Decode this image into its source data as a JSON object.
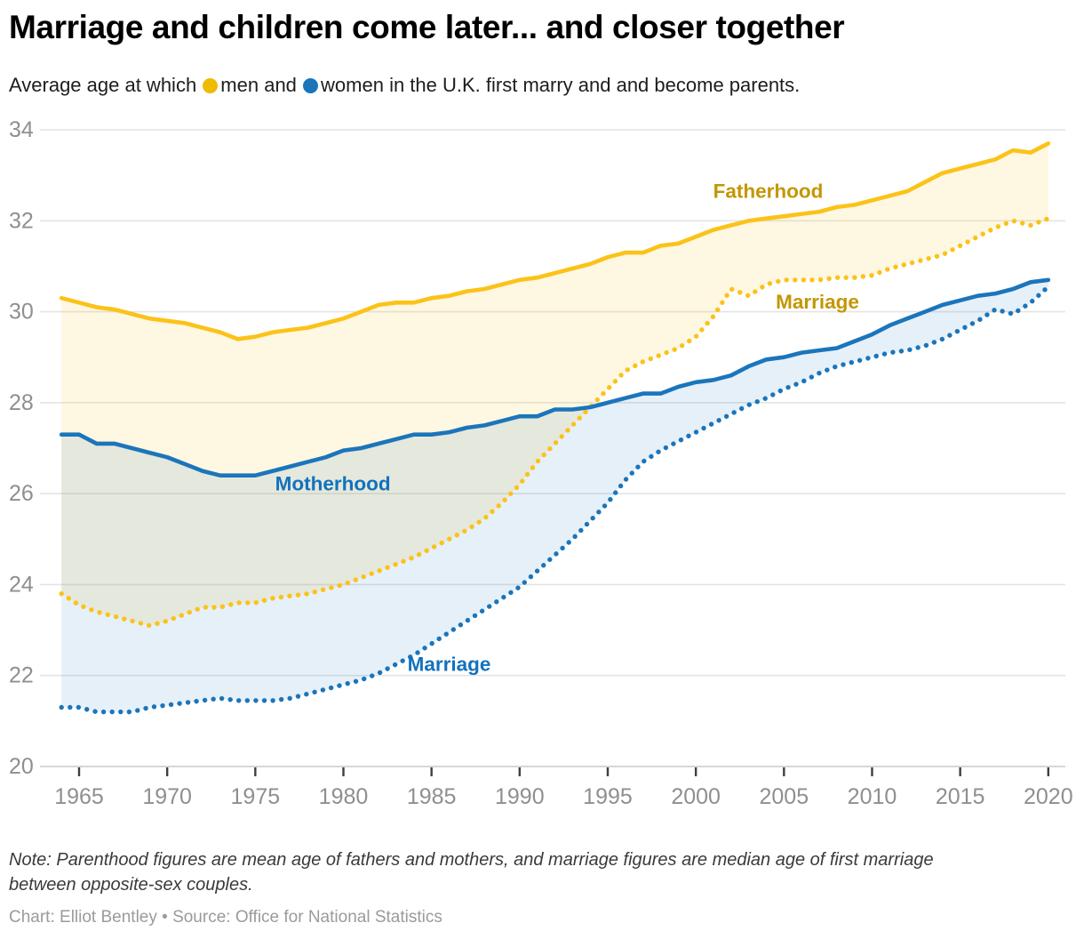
{
  "page": {
    "title": "Marriage and children come later... and closer together",
    "subtitle_segments": [
      {
        "type": "text",
        "text": "Average age at which "
      },
      {
        "type": "dot",
        "color": "#EFBB00",
        "name": "men-legend-dot"
      },
      {
        "type": "text",
        "text": "men and "
      },
      {
        "type": "dot",
        "color": "#1B75BB",
        "name": "women-legend-dot"
      },
      {
        "type": "text",
        "text": "women in the U.K. first marry and and become parents."
      }
    ],
    "note": "Note: Parenthood figures are mean age of fathers and mothers, and marriage figures are median age of first marriage between opposite-sex couples.",
    "credit": "Chart: Elliot Bentley • Source: Office for National Statistics"
  },
  "chart_data": {
    "type": "line",
    "title": "Marriage and children come later... and closer together",
    "xlabel": "",
    "ylabel": "Average age",
    "xlim": [
      1964,
      2020
    ],
    "ylim": [
      20,
      34
    ],
    "grid": "horizontal",
    "legend_position": "inline-in-subtitle",
    "xticks": [
      1965,
      1970,
      1975,
      1980,
      1985,
      1990,
      1995,
      2000,
      2005,
      2010,
      2015,
      2020
    ],
    "yticks": [
      20,
      22,
      24,
      26,
      28,
      30,
      32,
      34
    ],
    "x": [
      1964,
      1965,
      1966,
      1967,
      1968,
      1969,
      1970,
      1971,
      1972,
      1973,
      1974,
      1975,
      1976,
      1977,
      1978,
      1979,
      1980,
      1981,
      1982,
      1983,
      1984,
      1985,
      1986,
      1987,
      1988,
      1989,
      1990,
      1991,
      1992,
      1993,
      1994,
      1995,
      1996,
      1997,
      1998,
      1999,
      2000,
      2001,
      2002,
      2003,
      2004,
      2005,
      2006,
      2007,
      2008,
      2009,
      2010,
      2011,
      2012,
      2013,
      2014,
      2015,
      2016,
      2017,
      2018,
      2019,
      2020
    ],
    "series": [
      {
        "name": "Fatherhood",
        "group": "men",
        "line_style": "solid",
        "color": "#FBC219",
        "values": [
          30.3,
          30.2,
          30.1,
          30.05,
          29.95,
          29.85,
          29.8,
          29.75,
          29.65,
          29.55,
          29.4,
          29.45,
          29.55,
          29.6,
          29.65,
          29.75,
          29.85,
          30.0,
          30.15,
          30.2,
          30.2,
          30.3,
          30.35,
          30.45,
          30.5,
          30.6,
          30.7,
          30.75,
          30.85,
          30.95,
          31.05,
          31.2,
          31.3,
          31.3,
          31.45,
          31.5,
          31.65,
          31.8,
          31.9,
          32.0,
          32.05,
          32.1,
          32.15,
          32.2,
          32.3,
          32.35,
          32.45,
          32.55,
          32.65,
          32.85,
          33.05,
          33.15,
          33.25,
          33.35,
          33.55,
          33.5,
          33.7
        ]
      },
      {
        "name": "Marriage (men)",
        "group": "men",
        "line_style": "dotted",
        "color": "#FBC219",
        "values": [
          23.8,
          23.55,
          23.4,
          23.3,
          23.2,
          23.1,
          23.2,
          23.35,
          23.5,
          23.5,
          23.6,
          23.6,
          23.7,
          23.75,
          23.8,
          23.9,
          24.0,
          24.15,
          24.3,
          24.45,
          24.6,
          24.8,
          25.0,
          25.2,
          25.45,
          25.8,
          26.2,
          26.7,
          27.1,
          27.5,
          27.9,
          28.3,
          28.7,
          28.9,
          29.05,
          29.2,
          29.45,
          29.9,
          30.5,
          30.35,
          30.6,
          30.7,
          30.7,
          30.7,
          30.75,
          30.75,
          30.8,
          30.95,
          31.05,
          31.15,
          31.25,
          31.45,
          31.65,
          31.85,
          32.0,
          31.9,
          32.05
        ]
      },
      {
        "name": "Motherhood",
        "group": "women",
        "line_style": "solid",
        "color": "#1B75BB",
        "values": [
          27.3,
          27.3,
          27.1,
          27.1,
          27.0,
          26.9,
          26.8,
          26.65,
          26.5,
          26.4,
          26.4,
          26.4,
          26.5,
          26.6,
          26.7,
          26.8,
          26.95,
          27.0,
          27.1,
          27.2,
          27.3,
          27.3,
          27.35,
          27.45,
          27.5,
          27.6,
          27.7,
          27.7,
          27.85,
          27.85,
          27.9,
          28.0,
          28.1,
          28.2,
          28.2,
          28.35,
          28.45,
          28.5,
          28.6,
          28.8,
          28.95,
          29.0,
          29.1,
          29.15,
          29.2,
          29.35,
          29.5,
          29.7,
          29.85,
          30.0,
          30.15,
          30.25,
          30.35,
          30.4,
          30.5,
          30.65,
          30.7
        ]
      },
      {
        "name": "Marriage (women)",
        "group": "women",
        "line_style": "dotted",
        "color": "#1B75BB",
        "values": [
          21.3,
          21.3,
          21.2,
          21.2,
          21.2,
          21.3,
          21.35,
          21.4,
          21.45,
          21.5,
          21.45,
          21.45,
          21.45,
          21.5,
          21.6,
          21.7,
          21.8,
          21.9,
          22.05,
          22.25,
          22.45,
          22.7,
          22.95,
          23.2,
          23.45,
          23.7,
          23.95,
          24.3,
          24.65,
          25.0,
          25.4,
          25.8,
          26.3,
          26.7,
          26.95,
          27.15,
          27.35,
          27.55,
          27.75,
          27.95,
          28.1,
          28.3,
          28.45,
          28.65,
          28.8,
          28.9,
          29.0,
          29.1,
          29.15,
          29.25,
          29.4,
          29.6,
          29.8,
          30.05,
          29.95,
          30.2,
          30.55
        ]
      }
    ],
    "bands": [
      {
        "between": [
          "Fatherhood",
          "Marriage (men)"
        ],
        "color": "#FBC219",
        "opacity": 0.13
      },
      {
        "between": [
          "Motherhood",
          "Marriage (women)"
        ],
        "color": "#1B75BB",
        "opacity": 0.11
      }
    ],
    "annotations": [
      {
        "text": "Fatherhood",
        "year": 2004.1,
        "value": 32.65,
        "color": "#C39603"
      },
      {
        "text": "Marriage",
        "year": 2006.9,
        "value": 30.22,
        "color": "#C39603"
      },
      {
        "text": "Motherhood",
        "year": 1979.4,
        "value": 26.22,
        "color": "#1272BE"
      },
      {
        "text": "Marriage",
        "year": 1986.0,
        "value": 22.25,
        "color": "#1272BE"
      }
    ],
    "axis_colors": {
      "gridline": "#E4E4E4",
      "baseline": "#C9C9C9",
      "tick": "#3F3F3F",
      "tick_label": "#8F8F8F"
    }
  }
}
